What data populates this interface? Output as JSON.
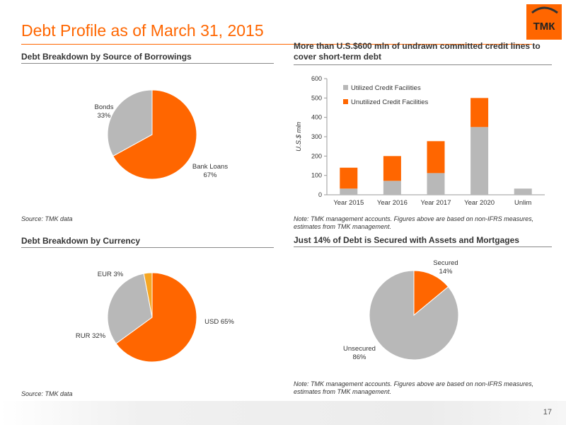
{
  "slide": {
    "title": "Debt Profile as of March 31, 2015",
    "logo_text": "ТМК",
    "page_number": "17"
  },
  "colors": {
    "orange": "#ff6600",
    "gray": "#b8b8b8",
    "yellow": "#f5a623"
  },
  "sections": {
    "borrowings": {
      "title": "Debt Breakdown by Source of Borrowings",
      "source": "Source: TMK data"
    },
    "credit_lines": {
      "title": "More than U.S.$600 mln of undrawn committed credit lines to cover short-term debt",
      "note": "Note: TMK management accounts. Figures above are based on non-IFRS measures, estimates from TMK management."
    },
    "currency": {
      "title": "Debt Breakdown by Currency",
      "source": "Source: TMK data"
    },
    "secured": {
      "title": "Just 14% of Debt is Secured with Assets and Mortgages",
      "note": "Note: TMK management accounts. Figures above are based on non-IFRS measures, estimates from TMK management."
    }
  },
  "chart_data": [
    {
      "type": "pie",
      "title": "Debt Breakdown by Source of Borrowings",
      "slices": [
        {
          "label": "Bank Loans",
          "pct_label": "67%",
          "value": 67,
          "color": "#ff6600"
        },
        {
          "label": "Bonds",
          "pct_label": "33%",
          "value": 33,
          "color": "#b8b8b8"
        }
      ]
    },
    {
      "type": "bar",
      "stacked": true,
      "title": "More than U.S.$600 mln of undrawn committed credit lines to cover short-term debt",
      "ylabel": "U.S.$ mln",
      "ylim": [
        0,
        600
      ],
      "yticks": [
        0,
        100,
        200,
        300,
        400,
        500,
        600
      ],
      "categories": [
        "Year 2015",
        "Year 2016",
        "Year 2017",
        "Year 2020",
        "Unlim"
      ],
      "series": [
        {
          "name": "Utilized Credit Facilities",
          "color": "#b8b8b8",
          "values": [
            32,
            72,
            112,
            350,
            32
          ]
        },
        {
          "name": "Unutilized Credit Facilities",
          "color": "#ff6600",
          "values": [
            108,
            128,
            165,
            150,
            0
          ]
        }
      ],
      "legend": "top-left"
    },
    {
      "type": "pie",
      "title": "Debt Breakdown by Currency",
      "slices": [
        {
          "label": "USD 65%",
          "value": 65,
          "color": "#ff6600"
        },
        {
          "label": "RUR 32%",
          "value": 32,
          "color": "#b8b8b8"
        },
        {
          "label": "EUR 3%",
          "value": 3,
          "color": "#f5a623"
        }
      ]
    },
    {
      "type": "pie",
      "title": "Just 14% of Debt is Secured with Assets and Mortgages",
      "slices": [
        {
          "label": "Secured",
          "pct_label": "14%",
          "value": 14,
          "color": "#ff6600"
        },
        {
          "label": "Unsecured",
          "pct_label": "86%",
          "value": 86,
          "color": "#b8b8b8"
        }
      ]
    }
  ]
}
